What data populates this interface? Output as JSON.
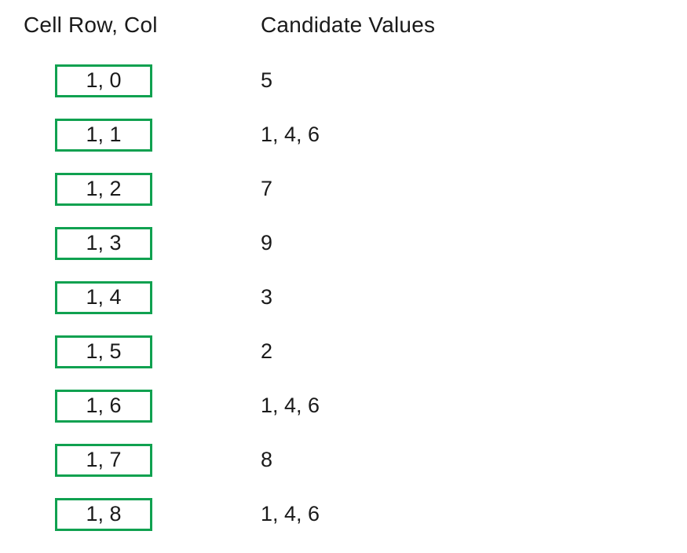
{
  "table": {
    "headers": {
      "cell": "Cell Row, Col",
      "candidates": "Candidate Values"
    },
    "rows": [
      {
        "cell": "1, 0",
        "candidates": "5"
      },
      {
        "cell": "1, 1",
        "candidates": "1, 4, 6"
      },
      {
        "cell": "1, 2",
        "candidates": "7"
      },
      {
        "cell": "1, 3",
        "candidates": "9"
      },
      {
        "cell": "1, 4",
        "candidates": "3"
      },
      {
        "cell": "1, 5",
        "candidates": "2"
      },
      {
        "cell": "1, 6",
        "candidates": "1, 4, 6"
      },
      {
        "cell": "1, 7",
        "candidates": "8"
      },
      {
        "cell": "1, 8",
        "candidates": "1, 4, 6"
      }
    ],
    "colors": {
      "box_border": "#10a150",
      "text": "#1a1a1a",
      "background": "#ffffff"
    }
  }
}
